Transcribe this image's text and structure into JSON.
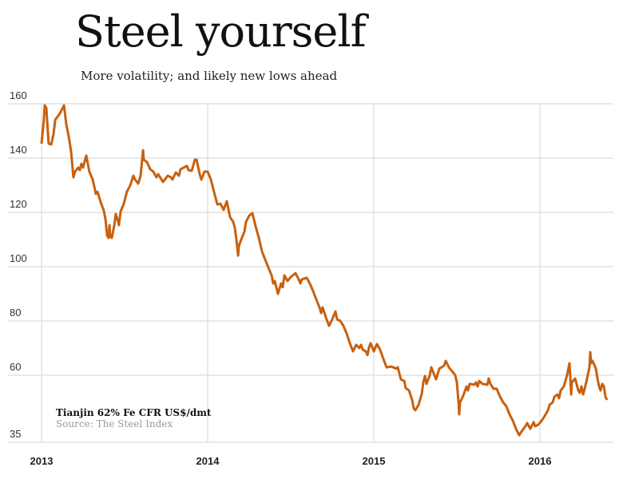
{
  "chart_data": {
    "type": "line",
    "title": "Steel yourself",
    "subtitle": "More volatility; and likely new lows ahead",
    "annotation": "Tianjin 62% Fe CFR US$/dmt",
    "source": "Source: The Steel Index",
    "xlabel": "",
    "ylabel": "",
    "xlim": [
      2012.8,
      2016.45
    ],
    "ylim": [
      35,
      160
    ],
    "grid": true,
    "line_color": "#c8600e",
    "x_ticks": [
      2013,
      2014,
      2015,
      2016
    ],
    "x_tick_labels": [
      "2013",
      "2014",
      "2015",
      "2016"
    ],
    "y_ticks": [
      35,
      60,
      80,
      100,
      120,
      140,
      160
    ],
    "y_tick_labels": [
      "35",
      "60",
      "80",
      "100",
      "120",
      "140",
      "160"
    ],
    "series": [
      {
        "x": [
          2013.0,
          2013.014,
          2013.019,
          2013.029,
          2013.043,
          2013.058,
          2013.072,
          2013.082,
          2013.111,
          2013.135,
          2013.149,
          2013.163,
          2013.178,
          2013.192,
          2013.202,
          2013.221,
          2013.231,
          2013.24,
          2013.25,
          2013.269,
          2013.288,
          2013.308,
          2013.327,
          2013.337,
          2013.356,
          2013.375,
          2013.385,
          2013.394,
          2013.404,
          2013.409,
          2013.413,
          2013.423,
          2013.438,
          2013.447,
          2013.457,
          2013.466,
          2013.476,
          2013.495,
          2013.514,
          2013.534,
          2013.553,
          2013.563,
          2013.582,
          2013.596,
          2013.611,
          2013.615,
          2013.635,
          2013.654,
          2013.673,
          2013.692,
          2013.702,
          2013.731,
          2013.76,
          2013.779,
          2013.788,
          2013.808,
          2013.827,
          2013.837,
          2013.856,
          2013.875,
          2013.885,
          2013.904,
          2013.923,
          2013.933,
          2013.952,
          2013.962,
          2013.981,
          2014.0,
          2014.019,
          2014.038,
          2014.058,
          2014.077,
          2014.096,
          2014.115,
          2014.135,
          2014.154,
          2014.163,
          2014.173,
          2014.183,
          2014.188,
          2014.202,
          2014.221,
          2014.231,
          2014.25,
          2014.269,
          2014.288,
          2014.308,
          2014.327,
          2014.346,
          2014.365,
          2014.385,
          2014.394,
          2014.404,
          2014.423,
          2014.442,
          2014.452,
          2014.462,
          2014.481,
          2014.5,
          2014.519,
          2014.529,
          2014.548,
          2014.558,
          2014.567,
          2014.596,
          2014.615,
          2014.635,
          2014.654,
          2014.673,
          2014.683,
          2014.692,
          2014.712,
          2014.731,
          2014.75,
          2014.769,
          2014.779,
          2014.798,
          2014.817,
          2014.837,
          2014.856,
          2014.875,
          2014.894,
          2014.913,
          2014.923,
          2014.933,
          2014.952,
          2014.962,
          2014.971,
          2014.981,
          2015.0,
          2015.019,
          2015.038,
          2015.058,
          2015.077,
          2015.106,
          2015.135,
          2015.144,
          2015.163,
          2015.183,
          2015.192,
          2015.212,
          2015.231,
          2015.24,
          2015.25,
          2015.269,
          2015.288,
          2015.298,
          2015.308,
          2015.317,
          2015.337,
          2015.346,
          2015.365,
          2015.375,
          2015.394,
          2015.423,
          2015.433,
          2015.452,
          2015.471,
          2015.49,
          2015.5,
          2015.51,
          2015.514,
          2015.519,
          2015.538,
          2015.558,
          2015.567,
          2015.577,
          2015.606,
          2015.615,
          2015.625,
          2015.635,
          2015.654,
          2015.683,
          2015.692,
          2015.702,
          2015.721,
          2015.74,
          2015.76,
          2015.779,
          2015.798,
          2015.817,
          2015.837,
          2015.856,
          2015.875,
          2015.894,
          2015.913,
          2015.923,
          2015.942,
          2015.962,
          2015.971,
          2015.99,
          2016.01,
          2016.029,
          2016.048,
          2016.058,
          2016.077,
          2016.087,
          2016.106,
          2016.115,
          2016.125,
          2016.144,
          2016.163,
          2016.178,
          2016.183,
          2016.188,
          2016.192,
          2016.212,
          2016.231,
          2016.24,
          2016.25,
          2016.26,
          2016.279,
          2016.298,
          2016.303,
          2016.308,
          2016.317,
          2016.337,
          2016.346,
          2016.356,
          2016.365,
          2016.375,
          2016.385,
          2016.394,
          2016.404
        ],
        "y": [
          145.3,
          154.1,
          159.4,
          158.5,
          145.3,
          145.0,
          148.8,
          154.1,
          156.5,
          159.4,
          152.4,
          148.2,
          142.4,
          132.9,
          135.0,
          136.5,
          135.6,
          137.9,
          136.5,
          140.9,
          135.0,
          132.1,
          126.8,
          127.6,
          123.8,
          120.6,
          117.4,
          111.5,
          110.6,
          115.3,
          111.2,
          110.6,
          115.3,
          119.4,
          117.4,
          115.3,
          120.3,
          123.2,
          127.6,
          130.0,
          133.5,
          132.1,
          130.6,
          133.5,
          142.9,
          139.4,
          138.5,
          135.9,
          135.0,
          132.9,
          134.1,
          131.2,
          133.5,
          132.9,
          132.1,
          134.7,
          133.5,
          135.9,
          136.5,
          137.1,
          135.6,
          135.3,
          139.4,
          139.4,
          134.1,
          132.1,
          135.0,
          135.0,
          132.1,
          127.6,
          122.9,
          123.2,
          120.9,
          124.1,
          118.2,
          116.5,
          114.4,
          110.0,
          104.1,
          107.6,
          110.0,
          112.9,
          116.5,
          118.8,
          119.7,
          115.0,
          110.6,
          105.6,
          102.6,
          99.7,
          96.8,
          93.8,
          94.7,
          90.0,
          93.8,
          92.4,
          96.8,
          94.7,
          96.2,
          97.1,
          97.6,
          95.3,
          93.8,
          95.3,
          95.9,
          93.8,
          90.9,
          87.9,
          85.0,
          82.9,
          85.0,
          81.2,
          78.2,
          80.6,
          83.5,
          80.6,
          80.0,
          78.2,
          75.3,
          71.8,
          68.8,
          71.2,
          70.0,
          71.2,
          69.4,
          68.8,
          67.4,
          70.3,
          71.8,
          68.8,
          71.5,
          69.4,
          65.9,
          62.9,
          63.2,
          62.4,
          62.9,
          58.2,
          57.6,
          55.0,
          54.1,
          50.6,
          47.6,
          46.8,
          48.8,
          52.6,
          57.1,
          59.4,
          56.5,
          60.0,
          62.9,
          60.0,
          58.2,
          62.4,
          63.5,
          65.3,
          62.9,
          61.5,
          60.0,
          57.1,
          49.7,
          45.3,
          49.7,
          52.1,
          55.6,
          54.1,
          56.5,
          56.2,
          57.1,
          55.6,
          57.6,
          56.5,
          56.2,
          58.5,
          56.5,
          54.7,
          54.7,
          51.8,
          49.7,
          48.2,
          45.3,
          42.9,
          40.0,
          37.6,
          39.4,
          40.9,
          42.1,
          40.0,
          42.4,
          40.9,
          41.5,
          42.9,
          44.7,
          46.8,
          48.8,
          49.7,
          51.8,
          52.6,
          51.2,
          54.1,
          55.6,
          60.0,
          64.4,
          58.5,
          52.6,
          57.1,
          58.5,
          54.1,
          53.2,
          55.6,
          52.6,
          57.1,
          62.9,
          68.5,
          64.4,
          65.3,
          62.4,
          58.5,
          55.6,
          54.1,
          56.5,
          55.6,
          51.8,
          50.6
        ]
      }
    ]
  }
}
